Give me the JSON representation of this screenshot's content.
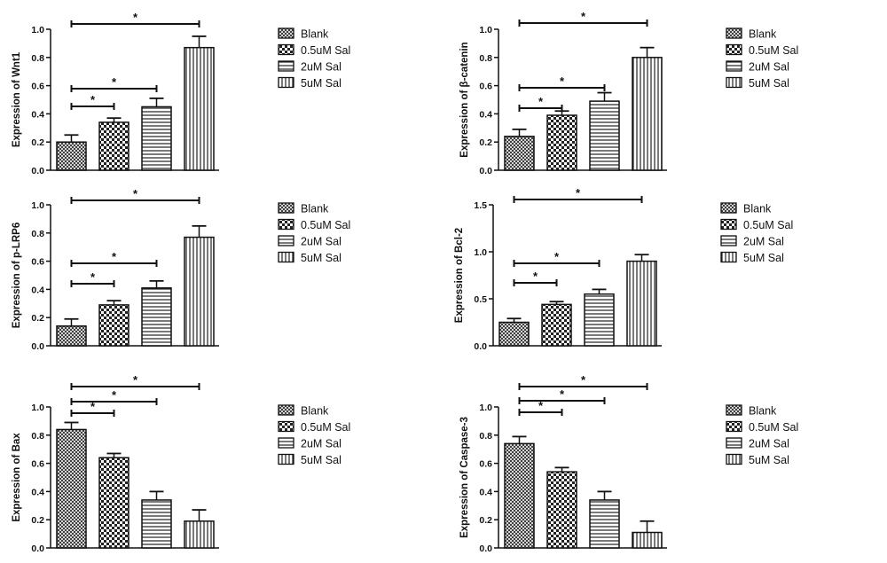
{
  "chart_data": [
    {
      "type": "bar",
      "categories": [
        "Blank",
        "0.5uM Sal",
        "2uM Sal",
        "5uM Sal"
      ],
      "values": [
        0.2,
        0.34,
        0.45,
        0.87
      ],
      "errors": [
        0.05,
        0.03,
        0.06,
        0.08
      ],
      "ylabel": "Expression of Wnt1",
      "ylim": [
        0,
        1.0
      ],
      "yticks": [
        "0.0",
        "0.2",
        "0.4",
        "0.6",
        "0.8",
        "1.0"
      ],
      "significance": [
        {
          "from": 0,
          "to": 1,
          "label": "*"
        },
        {
          "from": 0,
          "to": 2,
          "label": "*"
        },
        {
          "from": 0,
          "to": 3,
          "label": "*"
        }
      ],
      "legend_position": "right"
    },
    {
      "type": "bar",
      "categories": [
        "Blank",
        "0.5uM Sal",
        "2uM Sal",
        "5uM Sal"
      ],
      "values": [
        0.24,
        0.39,
        0.49,
        0.8
      ],
      "errors": [
        0.05,
        0.03,
        0.06,
        0.07
      ],
      "ylabel": "Expression of β-catenin",
      "ylim": [
        0,
        1.0
      ],
      "yticks": [
        "0.0",
        "0.2",
        "0.4",
        "0.6",
        "0.8",
        "1.0"
      ],
      "significance": [
        {
          "from": 0,
          "to": 1,
          "label": "*"
        },
        {
          "from": 0,
          "to": 2,
          "label": "*"
        },
        {
          "from": 0,
          "to": 3,
          "label": "*"
        }
      ],
      "legend_position": "right"
    },
    {
      "type": "bar",
      "categories": [
        "Blank",
        "0.5uM Sal",
        "2uM Sal",
        "5uM Sal"
      ],
      "values": [
        0.14,
        0.29,
        0.41,
        0.77
      ],
      "errors": [
        0.05,
        0.03,
        0.05,
        0.08
      ],
      "ylabel": "Expression of p-LRP6",
      "ylim": [
        0,
        1.0
      ],
      "yticks": [
        "0.0",
        "0.2",
        "0.4",
        "0.6",
        "0.8",
        "1.0"
      ],
      "significance": [
        {
          "from": 0,
          "to": 1,
          "label": "*"
        },
        {
          "from": 0,
          "to": 2,
          "label": "*"
        },
        {
          "from": 0,
          "to": 3,
          "label": "*"
        }
      ],
      "legend_position": "right"
    },
    {
      "type": "bar",
      "categories": [
        "Blank",
        "0.5uM Sal",
        "2uM Sal",
        "5uM Sal"
      ],
      "values": [
        0.25,
        0.44,
        0.55,
        0.9
      ],
      "errors": [
        0.04,
        0.03,
        0.05,
        0.07
      ],
      "ylabel": "Expression of Bcl-2",
      "ylim": [
        0,
        1.5
      ],
      "yticks": [
        "0.0",
        "0.5",
        "1.0",
        "1.5"
      ],
      "significance": [
        {
          "from": 0,
          "to": 1,
          "label": "*"
        },
        {
          "from": 0,
          "to": 2,
          "label": "*"
        },
        {
          "from": 0,
          "to": 3,
          "label": "*"
        }
      ],
      "legend_position": "right"
    },
    {
      "type": "bar",
      "categories": [
        "Blank",
        "0.5uM Sal",
        "2uM Sal",
        "5uM Sal"
      ],
      "values": [
        0.84,
        0.64,
        0.34,
        0.19
      ],
      "errors": [
        0.05,
        0.03,
        0.06,
        0.08
      ],
      "ylabel": "Expression of Bax",
      "ylim": [
        0,
        1.0
      ],
      "yticks": [
        "0.0",
        "0.2",
        "0.4",
        "0.6",
        "0.8",
        "1.0"
      ],
      "significance": [
        {
          "from": 0,
          "to": 1,
          "label": "*"
        },
        {
          "from": 0,
          "to": 2,
          "label": "*"
        },
        {
          "from": 0,
          "to": 3,
          "label": "*"
        }
      ],
      "legend_position": "right"
    },
    {
      "type": "bar",
      "categories": [
        "Blank",
        "0.5uM Sal",
        "2uM Sal",
        "5uM Sal"
      ],
      "values": [
        0.74,
        0.54,
        0.34,
        0.11
      ],
      "errors": [
        0.05,
        0.03,
        0.06,
        0.08
      ],
      "ylabel": "Expression of Caspase-3",
      "ylim": [
        0,
        1.0
      ],
      "yticks": [
        "0.0",
        "0.2",
        "0.4",
        "0.6",
        "0.8",
        "1.0"
      ],
      "significance": [
        {
          "from": 0,
          "to": 1,
          "label": "*"
        },
        {
          "from": 0,
          "to": 2,
          "label": "*"
        },
        {
          "from": 0,
          "to": 3,
          "label": "*"
        }
      ],
      "legend_position": "right"
    }
  ],
  "patterns": [
    "crosshatch",
    "checker",
    "hlines",
    "vlines"
  ],
  "colors": {
    "stroke": "#111111",
    "background": "#ffffff"
  }
}
